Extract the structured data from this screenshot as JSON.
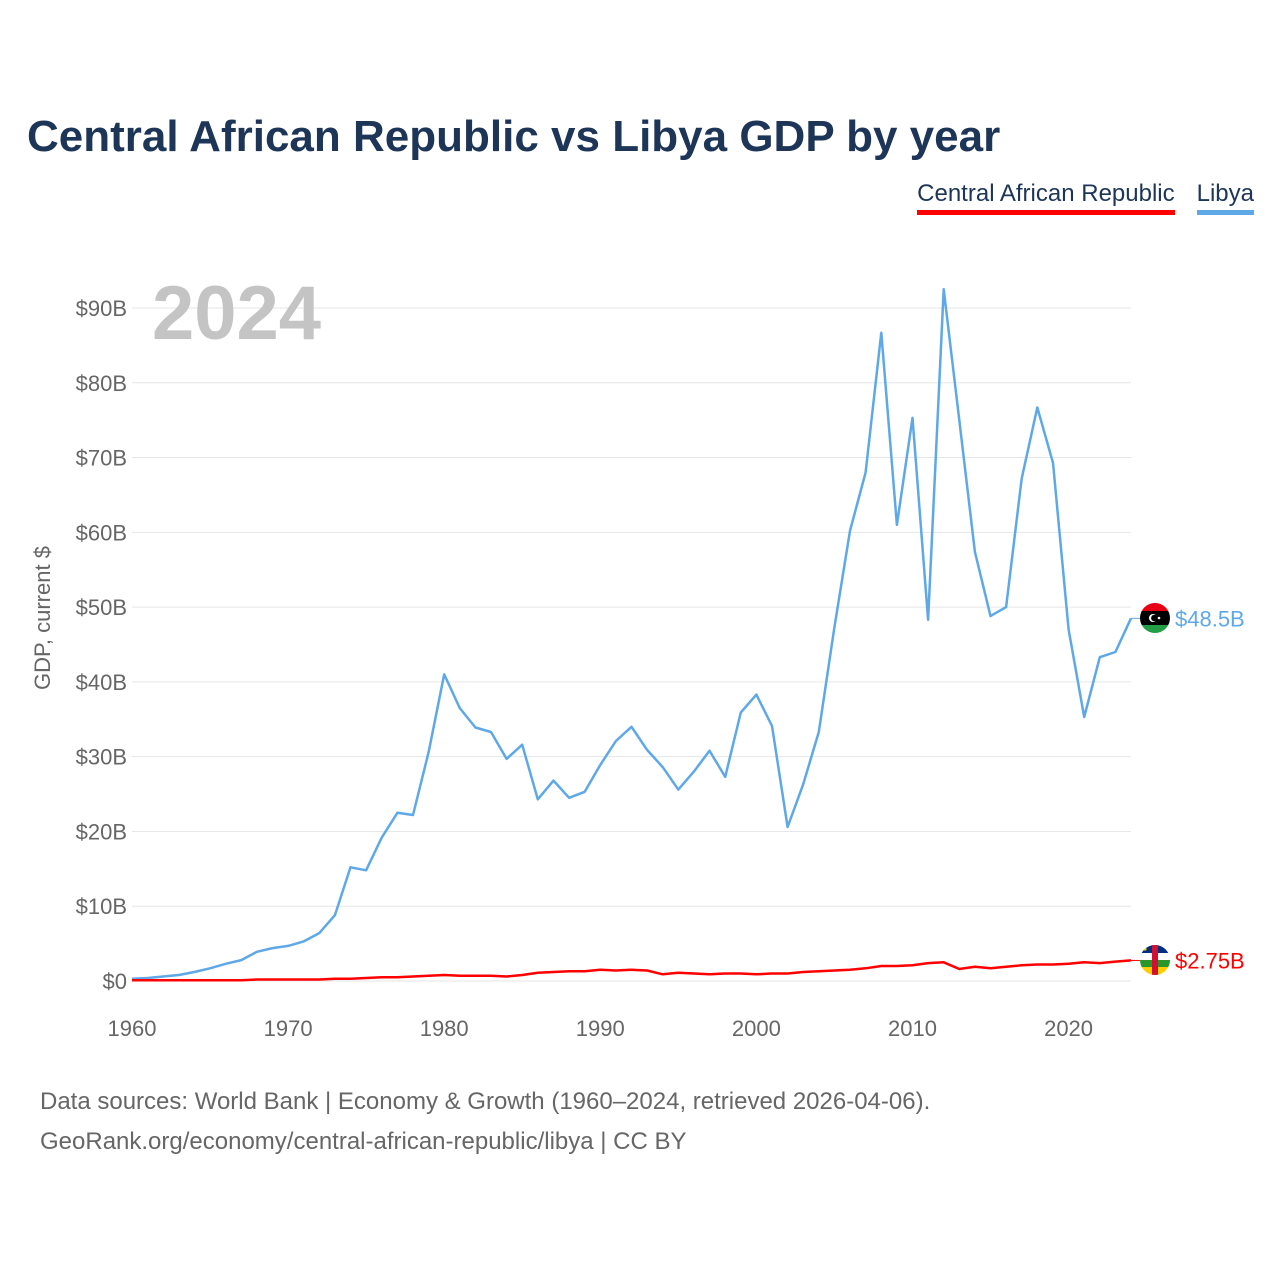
{
  "title": "Central African Republic vs Libya GDP by year",
  "legend": {
    "car": "Central African Republic",
    "libya": "Libya"
  },
  "footer": {
    "line1": "Data sources: World Bank | Economy & Growth (1960–2024, retrieved 2026-04-06).",
    "line2": "GeoRank.org/economy/central-african-republic/libya | CC BY"
  },
  "colors": {
    "car": "#ff0000",
    "libya": "#5fa8e8",
    "grid": "#e6e6e6",
    "axisText": "#666666",
    "year": "#c4c4c4"
  },
  "chart_data": {
    "type": "line",
    "year_label": "2024",
    "ylabel": "GDP, current $",
    "xlim": [
      1960,
      2024
    ],
    "ylim": [
      0,
      90
    ],
    "x_ticks": [
      1960,
      1970,
      1980,
      1990,
      2000,
      2010,
      2020
    ],
    "y_ticks": [
      {
        "value": 0,
        "label": "$0"
      },
      {
        "value": 10,
        "label": "$10B"
      },
      {
        "value": 20,
        "label": "$20B"
      },
      {
        "value": 30,
        "label": "$30B"
      },
      {
        "value": 40,
        "label": "$40B"
      },
      {
        "value": 50,
        "label": "$50B"
      },
      {
        "value": 60,
        "label": "$60B"
      },
      {
        "value": 70,
        "label": "$70B"
      },
      {
        "value": 80,
        "label": "$80B"
      },
      {
        "value": 90,
        "label": "$90B"
      }
    ],
    "x": [
      1960,
      1961,
      1962,
      1963,
      1964,
      1965,
      1966,
      1967,
      1968,
      1969,
      1970,
      1971,
      1972,
      1973,
      1974,
      1975,
      1976,
      1977,
      1978,
      1979,
      1980,
      1981,
      1982,
      1983,
      1984,
      1985,
      1986,
      1987,
      1988,
      1989,
      1990,
      1991,
      1992,
      1993,
      1994,
      1995,
      1996,
      1997,
      1998,
      1999,
      2000,
      2001,
      2002,
      2003,
      2004,
      2005,
      2006,
      2007,
      2008,
      2009,
      2010,
      2011,
      2012,
      2013,
      2014,
      2015,
      2016,
      2017,
      2018,
      2019,
      2020,
      2021,
      2022,
      2023,
      2024
    ],
    "series": [
      {
        "name": "Libya",
        "key": "libya",
        "end_label": "$48.5B",
        "values": [
          0.3,
          0.4,
          0.6,
          0.8,
          1.2,
          1.7,
          2.3,
          2.8,
          3.9,
          4.4,
          4.7,
          5.3,
          6.4,
          8.8,
          15.2,
          14.8,
          19.2,
          22.5,
          22.2,
          30.6,
          41.0,
          36.5,
          33.9,
          33.3,
          29.7,
          31.6,
          24.3,
          26.8,
          24.5,
          25.3,
          28.9,
          32.1,
          34.0,
          30.9,
          28.6,
          25.6,
          28.0,
          30.8,
          27.3,
          35.9,
          38.3,
          34.1,
          20.6,
          26.3,
          33.3,
          47.3,
          60.2,
          68.0,
          86.7,
          61.0,
          75.3,
          48.3,
          92.5,
          75.0,
          57.4,
          48.8,
          50.0,
          67.2,
          76.7,
          69.3,
          47.0,
          35.3,
          43.3,
          44.0,
          48.5
        ]
      },
      {
        "name": "Central African Republic",
        "key": "car",
        "end_label": "$2.75B",
        "values": [
          0.1,
          0.1,
          0.1,
          0.1,
          0.1,
          0.1,
          0.1,
          0.1,
          0.2,
          0.2,
          0.2,
          0.2,
          0.2,
          0.3,
          0.3,
          0.4,
          0.5,
          0.5,
          0.6,
          0.7,
          0.8,
          0.7,
          0.7,
          0.7,
          0.6,
          0.8,
          1.1,
          1.2,
          1.3,
          1.3,
          1.5,
          1.4,
          1.5,
          1.4,
          0.9,
          1.1,
          1.0,
          0.9,
          1.0,
          1.0,
          0.9,
          1.0,
          1.0,
          1.2,
          1.3,
          1.4,
          1.5,
          1.7,
          2.0,
          2.0,
          2.1,
          2.4,
          2.5,
          1.6,
          1.9,
          1.7,
          1.9,
          2.1,
          2.2,
          2.2,
          2.3,
          2.5,
          2.4,
          2.6,
          2.75
        ]
      }
    ]
  }
}
